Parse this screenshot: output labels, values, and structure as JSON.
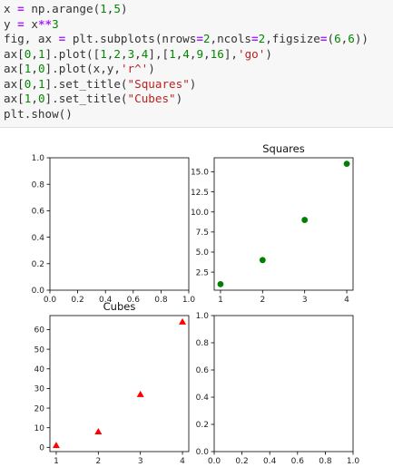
{
  "code_cell": {
    "lines": [
      [
        {
          "t": "x "
        },
        {
          "t": "=",
          "c": "op"
        },
        {
          "t": " np.arange("
        },
        {
          "t": "1",
          "c": "num"
        },
        {
          "t": ","
        },
        {
          "t": "5",
          "c": "num"
        },
        {
          "t": ")"
        }
      ],
      [
        {
          "t": "y "
        },
        {
          "t": "=",
          "c": "op"
        },
        {
          "t": " x"
        },
        {
          "t": "**",
          "c": "op"
        },
        {
          "t": "3",
          "c": "num"
        }
      ],
      [
        {
          "t": "fig, ax "
        },
        {
          "t": "=",
          "c": "op"
        },
        {
          "t": " plt.subplots(nrows"
        },
        {
          "t": "=",
          "c": "op"
        },
        {
          "t": "2",
          "c": "num"
        },
        {
          "t": ",ncols"
        },
        {
          "t": "=",
          "c": "op"
        },
        {
          "t": "2",
          "c": "num"
        },
        {
          "t": ",figsize"
        },
        {
          "t": "=",
          "c": "op"
        },
        {
          "t": "("
        },
        {
          "t": "6",
          "c": "num"
        },
        {
          "t": ","
        },
        {
          "t": "6",
          "c": "num"
        },
        {
          "t": "))"
        }
      ],
      [
        {
          "t": "ax["
        },
        {
          "t": "0",
          "c": "num"
        },
        {
          "t": ","
        },
        {
          "t": "1",
          "c": "num"
        },
        {
          "t": "].plot(["
        },
        {
          "t": "1",
          "c": "num"
        },
        {
          "t": ","
        },
        {
          "t": "2",
          "c": "num"
        },
        {
          "t": ","
        },
        {
          "t": "3",
          "c": "num"
        },
        {
          "t": ","
        },
        {
          "t": "4",
          "c": "num"
        },
        {
          "t": "],["
        },
        {
          "t": "1",
          "c": "num"
        },
        {
          "t": ","
        },
        {
          "t": "4",
          "c": "num"
        },
        {
          "t": ","
        },
        {
          "t": "9",
          "c": "num"
        },
        {
          "t": ","
        },
        {
          "t": "16",
          "c": "num"
        },
        {
          "t": "],"
        },
        {
          "t": "'go'",
          "c": "str"
        },
        {
          "t": ")"
        }
      ],
      [
        {
          "t": "ax["
        },
        {
          "t": "1",
          "c": "num"
        },
        {
          "t": ","
        },
        {
          "t": "0",
          "c": "num"
        },
        {
          "t": "].plot(x,y,"
        },
        {
          "t": "'r^'",
          "c": "str"
        },
        {
          "t": ")"
        }
      ],
      [
        {
          "t": "ax["
        },
        {
          "t": "0",
          "c": "num"
        },
        {
          "t": ","
        },
        {
          "t": "1",
          "c": "num"
        },
        {
          "t": "].set_title("
        },
        {
          "t": "\"Squares\"",
          "c": "str"
        },
        {
          "t": ")"
        }
      ],
      [
        {
          "t": "ax["
        },
        {
          "t": "1",
          "c": "num"
        },
        {
          "t": ","
        },
        {
          "t": "0",
          "c": "num"
        },
        {
          "t": "].set_title("
        },
        {
          "t": "\"Cubes\"",
          "c": "str"
        },
        {
          "t": ")"
        }
      ],
      [
        {
          "t": "plt.show()"
        }
      ]
    ]
  },
  "colors": {
    "keyword_operator": "#aa22ff",
    "number": "#008800",
    "string": "#ba2121",
    "squares_marker": "#008000",
    "cubes_marker": "#ff0000"
  },
  "chart_data": [
    {
      "position": "top-left",
      "type": "empty",
      "title": "",
      "xlim": [
        0,
        1
      ],
      "ylim": [
        0,
        1
      ],
      "xticks": [
        0.0,
        0.2,
        0.4,
        0.6,
        0.8,
        1.0
      ],
      "xtick_labels": [
        "0.0",
        "0.2",
        "0.4",
        "0.6",
        "0.8",
        "1.0"
      ],
      "yticks": [
        0.0,
        0.2,
        0.4,
        0.6,
        0.8,
        1.0
      ],
      "ytick_labels": [
        "0.0",
        "0.2",
        "0.4",
        "0.6",
        "0.8",
        "1.0"
      ],
      "x": [],
      "y": [],
      "marker": "none"
    },
    {
      "position": "top-right",
      "type": "scatter",
      "title": "Squares",
      "xlim": [
        0.85,
        4.15
      ],
      "ylim": [
        0.25,
        16.75
      ],
      "xticks": [
        1,
        2,
        3,
        4
      ],
      "xtick_labels": [
        "1",
        "2",
        "3",
        "4"
      ],
      "yticks": [
        2.5,
        5.0,
        7.5,
        10.0,
        12.5,
        15.0
      ],
      "ytick_labels": [
        "2.5",
        "5.0",
        "7.5",
        "10.0",
        "12.5",
        "15.0"
      ],
      "x": [
        1,
        2,
        3,
        4
      ],
      "y": [
        1,
        4,
        9,
        16
      ],
      "marker": "circle",
      "color": "#008000"
    },
    {
      "position": "bottom-left",
      "type": "scatter",
      "title": "Cubes",
      "xlim": [
        0.85,
        4.15
      ],
      "ylim": [
        -2.15,
        67.15
      ],
      "xticks": [
        1,
        2,
        3,
        4
      ],
      "xtick_labels": [
        "1",
        "2",
        "3",
        "4"
      ],
      "yticks": [
        0,
        10,
        20,
        30,
        40,
        50,
        60
      ],
      "ytick_labels": [
        "0",
        "10",
        "20",
        "30",
        "40",
        "50",
        "60"
      ],
      "x": [
        1,
        2,
        3,
        4
      ],
      "y": [
        1,
        8,
        27,
        64
      ],
      "marker": "triangle",
      "color": "#ff0000"
    },
    {
      "position": "bottom-right",
      "type": "empty",
      "title": "",
      "xlim": [
        0,
        1
      ],
      "ylim": [
        0,
        1
      ],
      "xticks": [
        0.0,
        0.2,
        0.4,
        0.6,
        0.8,
        1.0
      ],
      "xtick_labels": [
        "0.0",
        "0.2",
        "0.4",
        "0.6",
        "0.8",
        "1.0"
      ],
      "yticks": [
        0.0,
        0.2,
        0.4,
        0.6,
        0.8,
        1.0
      ],
      "ytick_labels": [
        "0.0",
        "0.2",
        "0.4",
        "0.6",
        "0.8",
        "1.0"
      ],
      "x": [],
      "y": [],
      "marker": "none"
    }
  ]
}
